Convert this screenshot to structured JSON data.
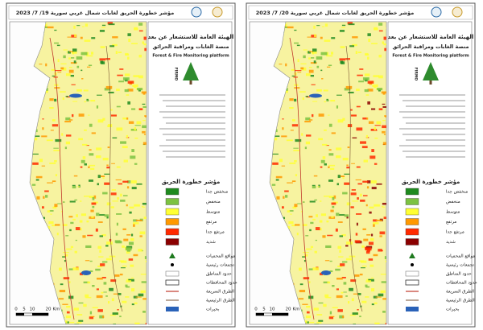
{
  "panels": [
    {
      "title": "مؤشر خطورة الحريق لغابات شمال غربي سورية 19/ 7/ 2023",
      "header": {
        "agency": "الهيئة العامة للاستشعار عن بعد",
        "platform": "منصة الغابات ومراقبة الحرائق",
        "platform_en": "Forest & Fire Monitoring platform",
        "logo": "FIRMO"
      },
      "legend": {
        "title": "مؤشر خطورة الحريق",
        "classes": [
          "منخفض جدا",
          "منخفض",
          "متوسط",
          "مرتفع",
          "مرتفع جدا",
          "شديد"
        ]
      },
      "legend2": {
        "items": [
          "مواقع المحميات",
          "تجمعات رئيسية",
          "حدود المناطق",
          "حدود المحافظات",
          "الطرق السريعة",
          "الطرق الرئيسية",
          "بحيرات"
        ]
      },
      "scale": [
        "0",
        "5",
        "10",
        "20",
        "Km"
      ]
    },
    {
      "title": "مؤشر خطورة الحريق لغابات شمال غربي سورية 20/ 7/ 2023",
      "header": {
        "agency": "الهيئة العامة للاستشعار عن بعد",
        "platform": "منصة الغابات ومراقبة الحرائق",
        "platform_en": "Forest & Fire Monitoring platform",
        "logo": "FIRMO"
      },
      "legend": {
        "title": "مؤشر خطورة الحريق",
        "classes": [
          "منخفض جدا",
          "منخفض",
          "متوسط",
          "مرتفع",
          "مرتفع جدا",
          "شديد"
        ]
      },
      "legend2": {
        "items": [
          "مواقع المحميات",
          "تجمعات رئيسية",
          "حدود المناطق",
          "حدود المحافظات",
          "الطرق السريعة",
          "الطرق الرئيسية",
          "بحيرات"
        ]
      },
      "scale": [
        "0",
        "5",
        "10",
        "20",
        "Km"
      ]
    }
  ]
}
